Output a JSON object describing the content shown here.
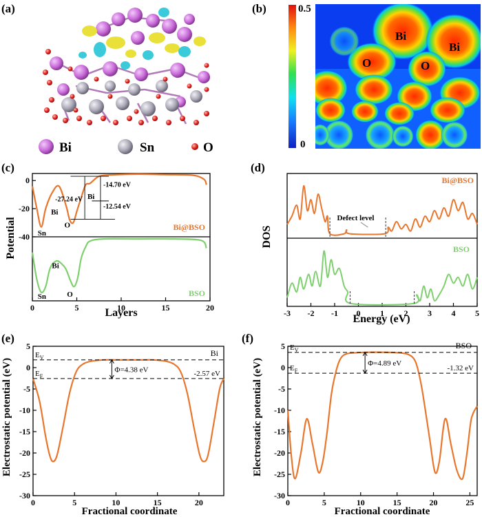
{
  "figure": {
    "panel_labels": [
      "(a)",
      "(b)",
      "(c)",
      "(d)",
      "(e)",
      "(f)"
    ]
  },
  "panel_a": {
    "legend": [
      {
        "label": "Bi",
        "color": "#c86ad8"
      },
      {
        "label": "Sn",
        "color": "#a8a6b4"
      },
      {
        "label": "O",
        "color": "#e0201c"
      }
    ]
  },
  "panel_b": {
    "colorbar_max": "0.5",
    "colorbar_min": "0",
    "atom_labels": [
      "Bi",
      "Bi",
      "O",
      "O"
    ]
  },
  "colors": {
    "orange": "#e8762c",
    "green": "#7ecf6e",
    "axis": "#000000"
  },
  "chart_data": [
    {
      "id": "c",
      "type": "line",
      "title": "",
      "xlabel": "Layers",
      "ylabel": "Potential",
      "xlim": [
        0,
        20
      ],
      "xticks": [
        "0",
        "5",
        "10",
        "15",
        "20"
      ],
      "top": {
        "name": "Bi@BSO",
        "ylim": [
          -40,
          5
        ],
        "yticks": [
          "-40",
          "-20",
          "0"
        ],
        "x": [
          0,
          0.5,
          1.0,
          1.5,
          2.2,
          3.0,
          3.8,
          4.2,
          4.6,
          5.0,
          5.5,
          6.0,
          6.5,
          7.5,
          9,
          12,
          15,
          18,
          19.3,
          19.6
        ],
        "values": [
          -4,
          -20,
          -33,
          -20,
          -9,
          -4,
          -18,
          -28,
          -30,
          -22,
          -12,
          -3,
          -2,
          3,
          4,
          4.5,
          4.2,
          3.8,
          1,
          -3
        ],
        "annotations": [
          "-27.24 eV",
          "-14.70 eV",
          "-12.54 eV",
          "Sn",
          "Bi",
          "O",
          "Bi"
        ]
      },
      "bottom": {
        "name": "BSO",
        "ylim": [
          -40,
          5
        ],
        "yticks": [],
        "x": [
          0,
          0.5,
          1.0,
          1.5,
          2.0,
          2.7,
          3.3,
          3.8,
          4.3,
          4.7,
          5.1,
          5.5,
          6.0,
          6.5,
          8,
          12,
          16,
          19,
          19.6
        ],
        "values": [
          -6,
          -25,
          -34,
          -30,
          -17,
          -12,
          -14,
          -18,
          -26,
          -30,
          -24,
          -10,
          -2,
          2,
          3.5,
          3.5,
          3.5,
          2.5,
          -3
        ],
        "annotations": [
          "Sn",
          "Bi",
          "O"
        ]
      }
    },
    {
      "id": "d",
      "type": "line",
      "xlabel": "Energy (eV)",
      "ylabel": "DOS",
      "xlim": [
        -3,
        5
      ],
      "xticks": [
        "-3",
        "-2",
        "-1",
        "0",
        "1",
        "2",
        "3",
        "4",
        "5"
      ],
      "series": [
        {
          "name": "Bi@BSO",
          "x": [
            -3.0,
            -2.8,
            -2.6,
            -2.45,
            -2.3,
            -2.15,
            -2.0,
            -1.85,
            -1.7,
            -1.55,
            -1.4,
            -1.3,
            -1.2,
            -0.6,
            -0.5,
            -0.35,
            1.1,
            1.25,
            1.4,
            1.6,
            1.8,
            2.0,
            2.2,
            2.4,
            2.6,
            2.8,
            3.0,
            3.2,
            3.4,
            3.6,
            3.8,
            4.0,
            4.2,
            4.4,
            4.6,
            4.8,
            5.0
          ],
          "values": [
            0.2,
            0.35,
            0.55,
            0.3,
            0.9,
            0.45,
            0.65,
            0.4,
            0.75,
            0.5,
            0.25,
            0.35,
            0.03,
            0.03,
            0.1,
            0.03,
            0.03,
            0.15,
            0.08,
            0.25,
            0.12,
            0.2,
            0.08,
            0.3,
            0.15,
            0.35,
            0.25,
            0.45,
            0.3,
            0.5,
            0.35,
            0.65,
            0.45,
            0.6,
            0.3,
            0.4,
            0.2
          ],
          "annotations": [
            "Defect level"
          ]
        },
        {
          "name": "BSO",
          "x": [
            -3.0,
            -2.8,
            -2.6,
            -2.45,
            -2.3,
            -2.1,
            -1.95,
            -1.8,
            -1.6,
            -1.45,
            -1.3,
            -1.15,
            -1.0,
            -0.8,
            -0.6,
            -0.45,
            -0.3,
            2.3,
            2.45,
            2.6,
            2.75,
            2.9,
            3.05,
            3.2,
            3.4,
            3.6,
            3.8,
            4.0,
            4.2,
            4.4,
            4.6,
            4.8,
            5.0
          ],
          "values": [
            0.1,
            0.35,
            0.2,
            0.45,
            0.25,
            0.5,
            0.3,
            0.55,
            0.3,
            0.9,
            0.45,
            0.75,
            0.5,
            0.6,
            0.3,
            0.2,
            0.0,
            0.0,
            0.15,
            0.05,
            0.3,
            0.1,
            0.25,
            0.05,
            0.15,
            0.3,
            0.5,
            0.35,
            0.45,
            0.3,
            0.5,
            0.25,
            0.45
          ],
          "annotations": []
        }
      ]
    },
    {
      "id": "e",
      "type": "line",
      "xlabel": "Fractional coordinate",
      "ylabel": "Electrostatic potential (eV)",
      "xlim": [
        0,
        23
      ],
      "ylim": [
        -30,
        5
      ],
      "xticks": [
        "0",
        "5",
        "10",
        "15",
        "20"
      ],
      "yticks": [
        "5",
        "0",
        "-5",
        "-10",
        "-15",
        "-20",
        "-25",
        "-30"
      ],
      "name": "Bi",
      "E_V": 1.81,
      "E_F": -2.57,
      "work_function": "Φ=4.38 eV",
      "ef_label": "-2.57 eV",
      "x": [
        0,
        0.8,
        1.5,
        2.0,
        2.4,
        2.9,
        3.6,
        4.4,
        5.2,
        6.0,
        7.0,
        8.5,
        10,
        11.5,
        13,
        14.5,
        16,
        17,
        17.8,
        18.6,
        19.4,
        20.1,
        20.6,
        21.1,
        21.8,
        22.5,
        23
      ],
      "values": [
        -2.6,
        -8,
        -16,
        -20.5,
        -22,
        -20.5,
        -14,
        -6,
        -1,
        0.8,
        1.5,
        1.8,
        1.8,
        1.8,
        1.8,
        1.8,
        1.5,
        0.8,
        -1,
        -6,
        -14,
        -20.5,
        -22,
        -20.5,
        -13,
        -5,
        -2.6
      ]
    },
    {
      "id": "f",
      "type": "line",
      "xlabel": "Fractional coordinate",
      "ylabel": "Electrostatic potential (eV)",
      "xlim": [
        0,
        26
      ],
      "ylim": [
        -30,
        5
      ],
      "xticks": [
        "0",
        "5",
        "10",
        "15",
        "20",
        "25"
      ],
      "yticks": [
        "5",
        "0",
        "-5",
        "-10",
        "-15",
        "-20",
        "-25",
        "-30"
      ],
      "name": "BSO",
      "E_V": 3.57,
      "E_F": -1.32,
      "work_function": "Φ=4.89 eV",
      "ef_label": "-1.32 eV",
      "x": [
        0,
        0.5,
        1.0,
        1.8,
        2.6,
        3.4,
        4.2,
        4.8,
        5.4,
        6.0,
        6.6,
        7.2,
        8.0,
        9.5,
        11,
        13,
        15,
        16.5,
        17.5,
        18.2,
        18.8,
        19.5,
        20.2,
        20.8,
        21.6,
        22.4,
        23.2,
        24.0,
        24.6,
        25.2,
        26
      ],
      "values": [
        -10,
        -21,
        -26,
        -20,
        -12,
        -18,
        -24.5,
        -22,
        -15,
        -6,
        -1,
        2,
        3.2,
        3.5,
        3.6,
        3.6,
        3.5,
        3.1,
        1.5,
        -3,
        -9,
        -17,
        -24.5,
        -22,
        -12,
        -18,
        -24,
        -26,
        -20,
        -12,
        -9
      ]
    }
  ]
}
